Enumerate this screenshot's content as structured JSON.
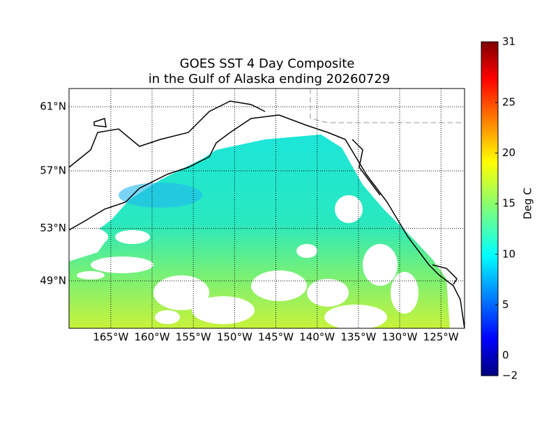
{
  "map": {
    "title": [
      "GOES SST 4 Day Composite",
      "in the Gulf of Alaska ending 20260729"
    ],
    "lat_ticks": [
      {
        "value": 61,
        "label": "61°N"
      },
      {
        "value": 57,
        "label": "57°N"
      },
      {
        "value": 53,
        "label": "53°N"
      },
      {
        "value": 49,
        "label": "49°N"
      }
    ],
    "lon_ticks": [
      {
        "value": -165,
        "label": "165°W"
      },
      {
        "value": -160,
        "label": "160°W"
      },
      {
        "value": -155,
        "label": "155°W"
      },
      {
        "value": -150,
        "label": "150°W"
      },
      {
        "value": -145,
        "label": "145°W"
      },
      {
        "value": -140,
        "label": "140°W"
      },
      {
        "value": -135,
        "label": "135°W"
      },
      {
        "value": -130,
        "label": "130°W"
      },
      {
        "value": -125,
        "label": "125°W"
      }
    ],
    "colorbar": {
      "label": "Deg C",
      "lim": [
        -2,
        31
      ],
      "ticks": [
        {
          "value": -2,
          "label": "−2"
        },
        0,
        5,
        10,
        15,
        20,
        25,
        31
      ]
    }
  }
}
